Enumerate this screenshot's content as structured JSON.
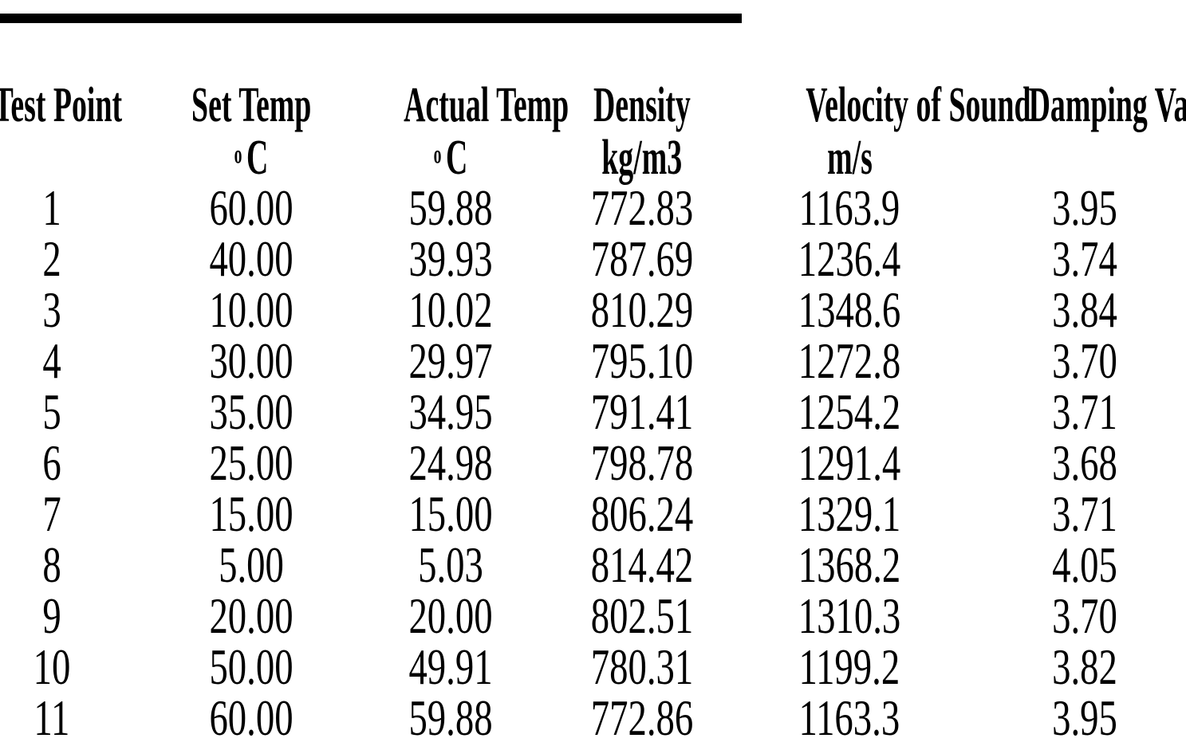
{
  "page": {
    "background": "#ffffff",
    "text_color": "#000000",
    "rule_color": "#000000"
  },
  "table": {
    "columns": [
      {
        "id": "test-point",
        "label": "Test Point",
        "unit_sup": "",
        "unit": ""
      },
      {
        "id": "set-temp",
        "label": "Set Temp",
        "unit_sup": "o",
        "unit": "C"
      },
      {
        "id": "actual-temp",
        "label": "Actual Temp",
        "unit_sup": "o",
        "unit": "C"
      },
      {
        "id": "density",
        "label": "Density",
        "unit_sup": "",
        "unit": "kg/m3"
      },
      {
        "id": "velocity",
        "label": "Velocity of Sound",
        "unit_sup": "",
        "unit": "m/s"
      },
      {
        "id": "damping",
        "label": "Damping Value",
        "unit_sup": "",
        "unit": ""
      }
    ],
    "rows": [
      [
        "1",
        "60.00",
        "59.88",
        "772.83",
        "1163.9",
        "3.95"
      ],
      [
        "2",
        "40.00",
        "39.93",
        "787.69",
        "1236.4",
        "3.74"
      ],
      [
        "3",
        "10.00",
        "10.02",
        "810.29",
        "1348.6",
        "3.84"
      ],
      [
        "4",
        "30.00",
        "29.97",
        "795.10",
        "1272.8",
        "3.70"
      ],
      [
        "5",
        "35.00",
        "34.95",
        "791.41",
        "1254.2",
        "3.71"
      ],
      [
        "6",
        "25.00",
        "24.98",
        "798.78",
        "1291.4",
        "3.68"
      ],
      [
        "7",
        "15.00",
        "15.00",
        "806.24",
        "1329.1",
        "3.71"
      ],
      [
        "8",
        "5.00",
        "5.03",
        "814.42",
        "1368.2",
        "4.05"
      ],
      [
        "9",
        "20.00",
        "20.00",
        "802.51",
        "1310.3",
        "3.70"
      ],
      [
        "10",
        "50.00",
        "49.91",
        "780.31",
        "1199.2",
        "3.82"
      ],
      [
        "11",
        "60.00",
        "59.88",
        "772.86",
        "1163.3",
        "3.95"
      ]
    ]
  }
}
